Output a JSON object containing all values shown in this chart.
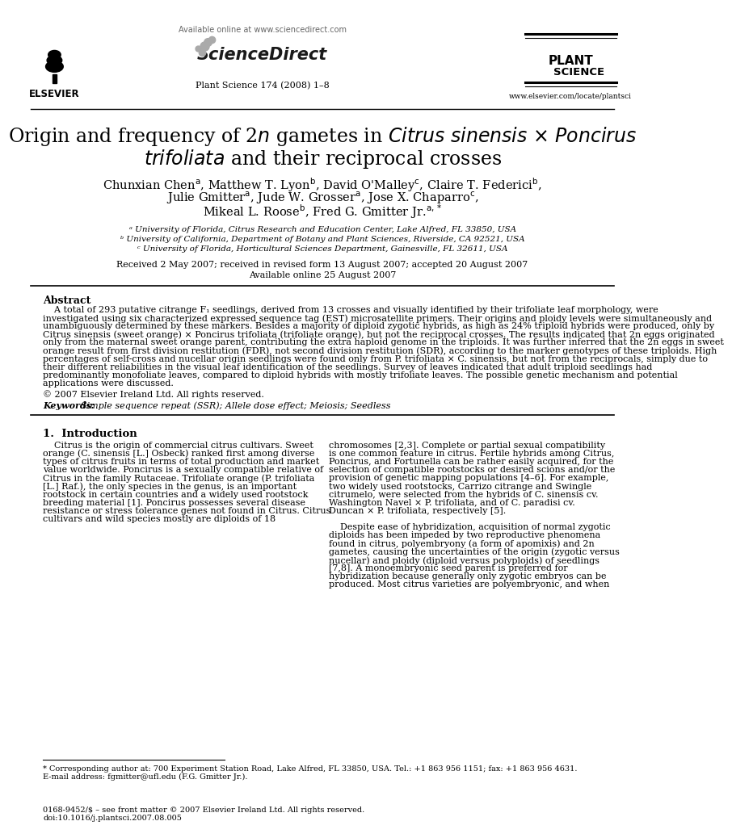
{
  "bg_color": "#ffffff",
  "available_online": "Available online at www.sciencedirect.com",
  "journal_info": "Plant Science 174 (2008) 1–8",
  "website": "www.elsevier.com/locate/plantsci",
  "affil_a": "ᵃ University of Florida, Citrus Research and Education Center, Lake Alfred, FL 33850, USA",
  "affil_b": "ᵇ University of California, Department of Botany and Plant Sciences, Riverside, CA 92521, USA",
  "affil_c": "ᶜ University of Florida, Horticultural Sciences Department, Gainesville, FL 32611, USA",
  "dates": "Received 2 May 2007; received in revised form 13 August 2007; accepted 20 August 2007",
  "available": "Available online 25 August 2007",
  "copyright": "© 2007 Elsevier Ireland Ltd. All rights reserved.",
  "keywords": "Simple sequence repeat (SSR); Allele dose effect; Meiosis; Seedless",
  "abstract_lines": [
    "    A total of 293 putative citrange F₁ seedlings, derived from 13 crosses and visually identified by their trifoliate leaf morphology, were",
    "investigated using six characterized expressed sequence tag (EST) microsatellite primers. Their origins and ploidy levels were simultaneously and",
    "unambiguously determined by these markers. Besides a majority of diploid zygotic hybrids, as high as 24% triploid hybrids were produced, only by",
    "Citrus sinensis (sweet orange) × Poncirus trifoliata (trifoliate orange), but not the reciprocal crosses. The results indicated that 2n eggs originated",
    "only from the maternal sweet orange parent, contributing the extra haploid genome in the triploids. It was further inferred that the 2n eggs in sweet",
    "orange result from first division restitution (FDR), not second division restitution (SDR), according to the marker genotypes of these triploids. High",
    "percentages of self-cross and nucellar origin seedlings were found only from P. trifoliata × C. sinensis, but not from the reciprocals, simply due to",
    "their different reliabilities in the visual leaf identification of the seedlings. Survey of leaves indicated that adult triploid seedlings had",
    "predominantly monofoliate leaves, compared to diploid hybrids with mostly trifoliate leaves. The possible genetic mechanism and potential",
    "applications were discussed."
  ],
  "intro_col1_lines": [
    "    Citrus is the origin of commercial citrus cultivars. Sweet",
    "orange (C. sinensis [L.] Osbeck) ranked first among diverse",
    "types of citrus fruits in terms of total production and market",
    "value worldwide. Poncirus is a sexually compatible relative of",
    "Citrus in the family Rutaceae. Trifoliate orange (P. trifoliata",
    "[L.] Raf.), the only species in the genus, is an important",
    "rootstock in certain countries and a widely used rootstock",
    "breeding material [1]. Poncirus possesses several disease",
    "resistance or stress tolerance genes not found in Citrus. Citrus",
    "cultivars and wild species mostly are diploids of 18"
  ],
  "intro_col2_lines": [
    "chromosomes [2,3]. Complete or partial sexual compatibility",
    "is one common feature in citrus. Fertile hybrids among Citrus,",
    "Poncirus, and Fortunella can be rather easily acquired, for the",
    "selection of compatible rootstocks or desired scions and/or the",
    "provision of genetic mapping populations [4–6]. For example,",
    "two widely used rootstocks, Carrizo citrange and Swingle",
    "citrumelo, were selected from the hybrids of C. sinensis cv.",
    "Washington Navel × P. trifoliata, and of C. paradisi cv.",
    "Duncan × P. trifoliata, respectively [5].",
    "",
    "    Despite ease of hybridization, acquisition of normal zygotic",
    "diploids has been impeded by two reproductive phenomena",
    "found in citrus, polyembryony (a form of apomixis) and 2n",
    "gametes, causing the uncertainties of the origin (zygotic versus",
    "nucellar) and ploidy (diploid versus polyploids) of seedlings",
    "[7,8]. A monoembryonic seed parent is preferred for",
    "hybridization because generally only zygotic embryos can be",
    "produced. Most citrus varieties are polyembryonic, and when"
  ],
  "footnote_lines": [
    "* Corresponding author at: 700 Experiment Station Road, Lake Alfred, FL 33850, USA. Tel.: +1 863 956 1151; fax: +1 863 956 4631.",
    "E-mail address: fgmitter@ufl.edu (F.G. Gmitter Jr.)."
  ],
  "bottom_lines": [
    "0168-9452/$ – see front matter © 2007 Elsevier Ireland Ltd. All rights reserved.",
    "doi:10.1016/j.plantsci.2007.08.005"
  ]
}
